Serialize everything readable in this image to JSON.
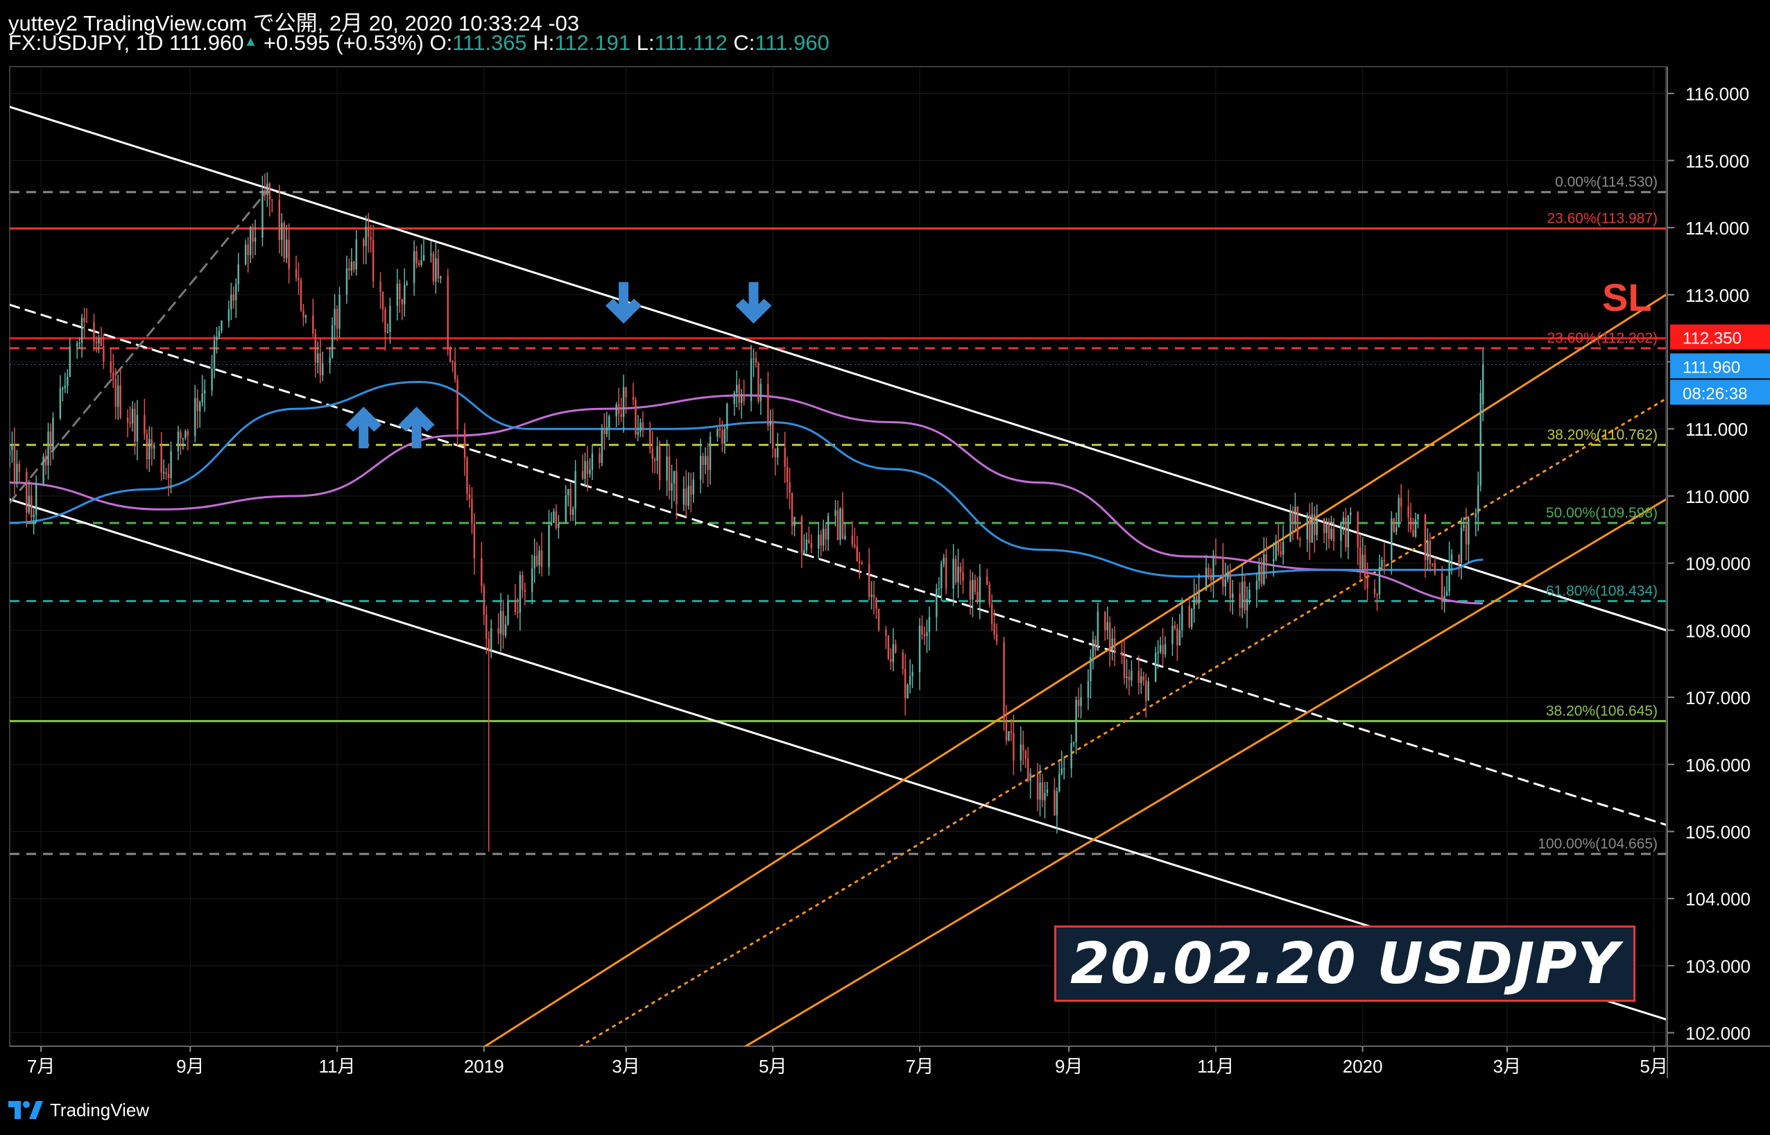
{
  "header": {
    "line1": "yuttey2 TradingView.com で公開, 2月 20, 2020 10:33:24 -03",
    "symbol": "FX:USDJPY, 1D",
    "last": "111.960",
    "change": "+0.595 (+0.53%)",
    "o_label": "O:",
    "o": "111.365",
    "h_label": "H:",
    "h": "112.191",
    "l_label": "L:",
    "l": "111.112",
    "c_label": "C:",
    "c": "111.960"
  },
  "banner": {
    "text": "20.02.20 USDJPY",
    "border_color": "#e53935",
    "bg_color": "#0f2236"
  },
  "footer": {
    "brand": "TradingView"
  },
  "annotations": {
    "sl_label": "SL",
    "sl_color": "#f44336"
  },
  "price_tags": {
    "sl_price": "112.350",
    "last_price": "111.960",
    "countdown": "08:26:38"
  },
  "chart_data": {
    "type": "candlestick",
    "symbol": "FX:USDJPY",
    "interval": "1D",
    "y_range": [
      101.8,
      116.4
    ],
    "y_ticks": [
      "116.000",
      "115.000",
      "114.000",
      "113.000",
      "112.000",
      "111.000",
      "110.000",
      "109.000",
      "108.000",
      "107.000",
      "106.000",
      "105.000",
      "104.000",
      "103.000",
      "102.000"
    ],
    "x_ticks": [
      "7月",
      "9月",
      "11月",
      "2019",
      "3月",
      "5月",
      "7月",
      "9月",
      "11月",
      "2020",
      "3月",
      "5月"
    ],
    "x_range": [
      "2018-06-18",
      "2020-05-06"
    ],
    "fib_levels": [
      {
        "label": "0.00%(114.530)",
        "value": 114.53,
        "color": "#8a8a8a",
        "style": "dashed"
      },
      {
        "label": "23.60%(113.987)",
        "value": 113.987,
        "color": "#e53935",
        "style": "solid"
      },
      {
        "label": "23.60%(112.202)",
        "value": 112.202,
        "color": "#e53935",
        "style": "dashed"
      },
      {
        "label": "38.20%(110.762)",
        "value": 110.762,
        "color": "#c0ca33",
        "style": "dashed"
      },
      {
        "label": "50.00%(109.598)",
        "value": 109.598,
        "color": "#4caf50",
        "style": "dashed"
      },
      {
        "label": "61.80%(108.434)",
        "value": 108.434,
        "color": "#26a69a",
        "style": "dashed"
      },
      {
        "label": "38.20%(106.645)",
        "value": 106.645,
        "color": "#8bc34a",
        "style": "solid"
      },
      {
        "label": "100.00%(104.665)",
        "value": 104.665,
        "color": "#8a8a8a",
        "style": "dashed"
      }
    ],
    "sl_line": {
      "value": 112.35,
      "color": "#ff1a1a"
    },
    "price_anchors": [
      {
        "date": "2018-06-18",
        "close": 110.6
      },
      {
        "date": "2018-06-27",
        "close": 109.7
      },
      {
        "date": "2018-07-18",
        "close": 112.7
      },
      {
        "date": "2018-08-01",
        "close": 111.5
      },
      {
        "date": "2018-08-22",
        "close": 110.4
      },
      {
        "date": "2018-09-05",
        "close": 111.5
      },
      {
        "date": "2018-10-03",
        "close": 114.5
      },
      {
        "date": "2018-10-26",
        "close": 111.9
      },
      {
        "date": "2018-11-12",
        "close": 114.0
      },
      {
        "date": "2018-11-22",
        "close": 112.5
      },
      {
        "date": "2018-12-04",
        "close": 113.7
      },
      {
        "date": "2018-12-13",
        "close": 113.4
      },
      {
        "date": "2019-01-03",
        "close": 107.7
      },
      {
        "date": "2019-01-10",
        "close": 108.2
      },
      {
        "date": "2019-01-28",
        "close": 109.4
      },
      {
        "date": "2019-02-28",
        "close": 111.4
      },
      {
        "date": "2019-03-25",
        "close": 109.9
      },
      {
        "date": "2019-04-23",
        "close": 111.9
      },
      {
        "date": "2019-05-13",
        "close": 109.3
      },
      {
        "date": "2019-05-30",
        "close": 109.6
      },
      {
        "date": "2019-06-25",
        "close": 107.2
      },
      {
        "date": "2019-07-10",
        "close": 108.9
      },
      {
        "date": "2019-07-30",
        "close": 108.6
      },
      {
        "date": "2019-08-07",
        "close": 106.3
      },
      {
        "date": "2019-08-26",
        "close": 105.3
      },
      {
        "date": "2019-09-13",
        "close": 108.1
      },
      {
        "date": "2019-10-02",
        "close": 107.1
      },
      {
        "date": "2019-10-30",
        "close": 108.9
      },
      {
        "date": "2019-11-14",
        "close": 108.5
      },
      {
        "date": "2019-12-02",
        "close": 109.6
      },
      {
        "date": "2019-12-27",
        "close": 109.5
      },
      {
        "date": "2020-01-06",
        "close": 108.4
      },
      {
        "date": "2020-01-17",
        "close": 110.1
      },
      {
        "date": "2020-02-03",
        "close": 108.6
      },
      {
        "date": "2020-02-18",
        "close": 109.9
      },
      {
        "date": "2020-02-19",
        "close": 111.4
      },
      {
        "date": "2020-02-20",
        "close": 111.96
      }
    ],
    "ma_fast": {
      "name": "",
      "color": "#2f8fe0",
      "points": [
        [
          "2018-06-18",
          109.6
        ],
        [
          "2018-08-15",
          110.1
        ],
        [
          "2018-10-15",
          111.3
        ],
        [
          "2018-12-05",
          111.7
        ],
        [
          "2019-01-20",
          111.0
        ],
        [
          "2019-03-20",
          111.0
        ],
        [
          "2019-05-01",
          111.1
        ],
        [
          "2019-06-20",
          110.4
        ],
        [
          "2019-08-20",
          109.2
        ],
        [
          "2019-10-20",
          108.8
        ],
        [
          "2019-12-20",
          108.9
        ],
        [
          "2020-02-05",
          108.9
        ],
        [
          "2020-02-20",
          109.05
        ]
      ]
    },
    "ma_slow": {
      "name": "",
      "color": "#c36ed6",
      "points": [
        [
          "2018-06-18",
          110.2
        ],
        [
          "2018-08-20",
          109.8
        ],
        [
          "2018-10-15",
          110.0
        ],
        [
          "2018-12-20",
          110.9
        ],
        [
          "2019-02-20",
          111.3
        ],
        [
          "2019-04-20",
          111.5
        ],
        [
          "2019-06-20",
          111.1
        ],
        [
          "2019-08-20",
          110.2
        ],
        [
          "2019-10-20",
          109.1
        ],
        [
          "2019-12-20",
          108.9
        ],
        [
          "2020-02-20",
          108.4
        ]
      ]
    },
    "trendlines": [
      {
        "color": "#ffffff",
        "style": "solid",
        "points": [
          [
            "2018-06-18",
            115.8
          ],
          [
            "2020-05-06",
            108.0
          ]
        ]
      },
      {
        "color": "#ffffff",
        "style": "solid",
        "points": [
          [
            "2018-06-18",
            109.95
          ],
          [
            "2020-05-06",
            102.2
          ]
        ]
      },
      {
        "color": "#ffffff",
        "style": "dashed",
        "points": [
          [
            "2018-06-18",
            112.85
          ],
          [
            "2020-05-06",
            105.1
          ]
        ]
      },
      {
        "color": "#f7931a",
        "style": "solid",
        "points": [
          [
            "2018-12-15",
            101.4
          ],
          [
            "2020-05-06",
            113.0
          ]
        ]
      },
      {
        "color": "#f7931a",
        "style": "solid",
        "points": [
          [
            "2019-04-01",
            101.4
          ],
          [
            "2020-05-06",
            109.95
          ]
        ]
      },
      {
        "color": "#f7931a",
        "style": "dotted",
        "points": [
          [
            "2019-02-10",
            101.8
          ],
          [
            "2020-05-06",
            111.45
          ]
        ]
      },
      {
        "color": "#777777",
        "style": "dashed",
        "points": [
          [
            "2018-06-18",
            109.9
          ],
          [
            "2018-10-03",
            114.55
          ]
        ]
      }
    ],
    "arrows": [
      {
        "date": "2018-11-12",
        "price": 111.0,
        "direction": "up"
      },
      {
        "date": "2018-12-04",
        "price": 111.0,
        "direction": "up"
      },
      {
        "date": "2019-02-28",
        "price": 112.9,
        "direction": "down"
      },
      {
        "date": "2019-04-23",
        "price": 112.9,
        "direction": "down"
      }
    ],
    "colors": {
      "up": "#5fb6a8",
      "down": "#e05252",
      "grid": "#1b1b1b",
      "axis_text": "#ffffff"
    }
  }
}
